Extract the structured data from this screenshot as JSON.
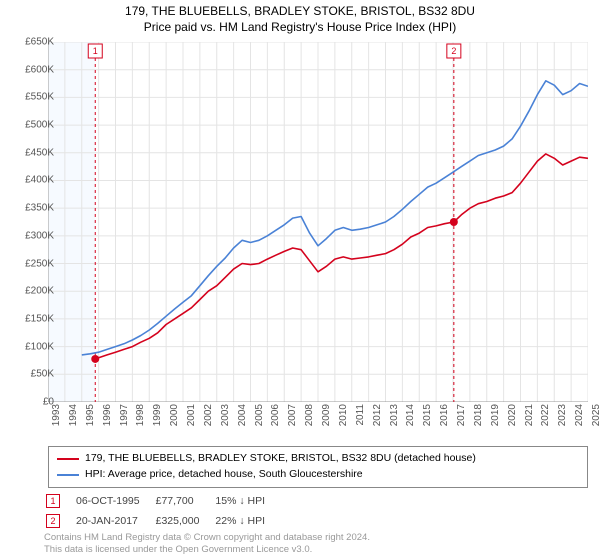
{
  "titles": {
    "line1": "179, THE BLUEBELLS, BRADLEY STOKE, BRISTOL, BS32 8DU",
    "line2": "Price paid vs. HM Land Registry's House Price Index (HPI)"
  },
  "chart": {
    "type": "line",
    "background_color": "#ffffff",
    "plot_background_left": "#f6faff",
    "grid_color": "#e4e4e4",
    "axis_color": "#999999",
    "x": {
      "min": 1993,
      "max": 2025,
      "tick_step": 1
    },
    "y": {
      "min": 0,
      "max": 650000,
      "tick_step": 50000,
      "prefix": "£",
      "suffix": "K",
      "divisor": 1000
    },
    "series": [
      {
        "id": "price_paid",
        "label": "179, THE BLUEBELLS, BRADLEY STOKE, BRISTOL, BS32 8DU (detached house)",
        "color": "#d4021d",
        "line_width": 1.6,
        "points": [
          [
            1995.8,
            77700
          ],
          [
            1996,
            80000
          ],
          [
            1996.5,
            85000
          ],
          [
            1997,
            90000
          ],
          [
            1997.5,
            95000
          ],
          [
            1998,
            100000
          ],
          [
            1998.5,
            108000
          ],
          [
            1999,
            115000
          ],
          [
            1999.5,
            125000
          ],
          [
            2000,
            140000
          ],
          [
            2000.5,
            150000
          ],
          [
            2001,
            160000
          ],
          [
            2001.5,
            170000
          ],
          [
            2002,
            185000
          ],
          [
            2002.5,
            200000
          ],
          [
            2003,
            210000
          ],
          [
            2003.5,
            225000
          ],
          [
            2004,
            240000
          ],
          [
            2004.5,
            250000
          ],
          [
            2005,
            248000
          ],
          [
            2005.5,
            250000
          ],
          [
            2006,
            258000
          ],
          [
            2006.5,
            265000
          ],
          [
            2007,
            272000
          ],
          [
            2007.5,
            278000
          ],
          [
            2008,
            275000
          ],
          [
            2008.5,
            255000
          ],
          [
            2009,
            235000
          ],
          [
            2009.5,
            245000
          ],
          [
            2010,
            258000
          ],
          [
            2010.5,
            262000
          ],
          [
            2011,
            258000
          ],
          [
            2011.5,
            260000
          ],
          [
            2012,
            262000
          ],
          [
            2012.5,
            265000
          ],
          [
            2013,
            268000
          ],
          [
            2013.5,
            275000
          ],
          [
            2014,
            285000
          ],
          [
            2014.5,
            298000
          ],
          [
            2015,
            305000
          ],
          [
            2015.5,
            315000
          ],
          [
            2016,
            318000
          ],
          [
            2016.5,
            322000
          ],
          [
            2017.05,
            325000
          ],
          [
            2017.5,
            338000
          ],
          [
            2018,
            350000
          ],
          [
            2018.5,
            358000
          ],
          [
            2019,
            362000
          ],
          [
            2019.5,
            368000
          ],
          [
            2020,
            372000
          ],
          [
            2020.5,
            378000
          ],
          [
            2021,
            395000
          ],
          [
            2021.5,
            415000
          ],
          [
            2022,
            435000
          ],
          [
            2022.5,
            448000
          ],
          [
            2023,
            440000
          ],
          [
            2023.5,
            428000
          ],
          [
            2024,
            435000
          ],
          [
            2024.5,
            442000
          ],
          [
            2025,
            440000
          ]
        ]
      },
      {
        "id": "hpi",
        "label": "HPI: Average price, detached house, South Gloucestershire",
        "color": "#4a82d6",
        "line_width": 1.6,
        "points": [
          [
            1995,
            85000
          ],
          [
            1995.5,
            87000
          ],
          [
            1996,
            90000
          ],
          [
            1996.5,
            95000
          ],
          [
            1997,
            100000
          ],
          [
            1997.5,
            105000
          ],
          [
            1998,
            112000
          ],
          [
            1998.5,
            120000
          ],
          [
            1999,
            130000
          ],
          [
            1999.5,
            142000
          ],
          [
            2000,
            155000
          ],
          [
            2000.5,
            168000
          ],
          [
            2001,
            180000
          ],
          [
            2001.5,
            192000
          ],
          [
            2002,
            210000
          ],
          [
            2002.5,
            228000
          ],
          [
            2003,
            245000
          ],
          [
            2003.5,
            260000
          ],
          [
            2004,
            278000
          ],
          [
            2004.5,
            292000
          ],
          [
            2005,
            288000
          ],
          [
            2005.5,
            292000
          ],
          [
            2006,
            300000
          ],
          [
            2006.5,
            310000
          ],
          [
            2007,
            320000
          ],
          [
            2007.5,
            332000
          ],
          [
            2008,
            335000
          ],
          [
            2008.5,
            305000
          ],
          [
            2009,
            282000
          ],
          [
            2009.5,
            295000
          ],
          [
            2010,
            310000
          ],
          [
            2010.5,
            315000
          ],
          [
            2011,
            310000
          ],
          [
            2011.5,
            312000
          ],
          [
            2012,
            315000
          ],
          [
            2012.5,
            320000
          ],
          [
            2013,
            325000
          ],
          [
            2013.5,
            335000
          ],
          [
            2014,
            348000
          ],
          [
            2014.5,
            362000
          ],
          [
            2015,
            375000
          ],
          [
            2015.5,
            388000
          ],
          [
            2016,
            395000
          ],
          [
            2016.5,
            405000
          ],
          [
            2017,
            415000
          ],
          [
            2017.5,
            425000
          ],
          [
            2018,
            435000
          ],
          [
            2018.5,
            445000
          ],
          [
            2019,
            450000
          ],
          [
            2019.5,
            455000
          ],
          [
            2020,
            462000
          ],
          [
            2020.5,
            475000
          ],
          [
            2021,
            498000
          ],
          [
            2021.5,
            525000
          ],
          [
            2022,
            555000
          ],
          [
            2022.5,
            580000
          ],
          [
            2023,
            572000
          ],
          [
            2023.5,
            555000
          ],
          [
            2024,
            562000
          ],
          [
            2024.5,
            575000
          ],
          [
            2025,
            570000
          ]
        ]
      }
    ],
    "markers": [
      {
        "id": 1,
        "x": 1995.8,
        "y": 77700,
        "color": "#d4021d",
        "dash_line": true
      },
      {
        "id": 2,
        "x": 2017.05,
        "y": 325000,
        "color": "#d4021d",
        "dash_line": true
      }
    ],
    "marker_label_box": {
      "border_color": "#d4021d",
      "text_color": "#d4021d"
    }
  },
  "legend": {
    "border_color": "#888888",
    "fontsize": 10.5
  },
  "marker_rows": [
    {
      "id": "1",
      "date": "06-OCT-1995",
      "price": "£77,700",
      "diff": "15% ↓ HPI"
    },
    {
      "id": "2",
      "date": "20-JAN-2017",
      "price": "£325,000",
      "diff": "22% ↓ HPI"
    }
  ],
  "footer": {
    "line1": "Contains HM Land Registry data © Crown copyright and database right 2024.",
    "line2": "This data is licensed under the Open Government Licence v3.0."
  }
}
